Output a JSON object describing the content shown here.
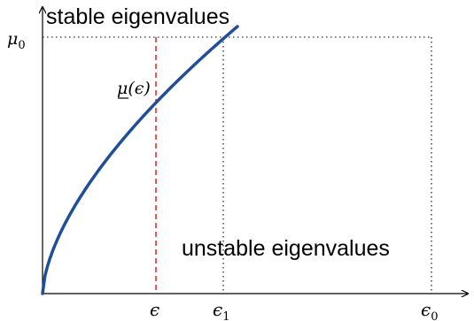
{
  "labels": {
    "stable_region": "stable eigenvalues",
    "unstable_region": "unstable eigenvalues",
    "mu0_base": "μ",
    "mu0_sub": "0",
    "curve_base": "μ",
    "curve_arg": "(ϵ)",
    "x_eps": "ϵ",
    "x_eps1_base": "ϵ",
    "x_eps1_sub": "1",
    "x_eps0_base": "ϵ",
    "x_eps0_sub": "0"
  },
  "colors": {
    "curve": "#1f4e9a",
    "epsilon_line": "#e0312b",
    "axes": "#000000",
    "guides": "#000000"
  }
}
